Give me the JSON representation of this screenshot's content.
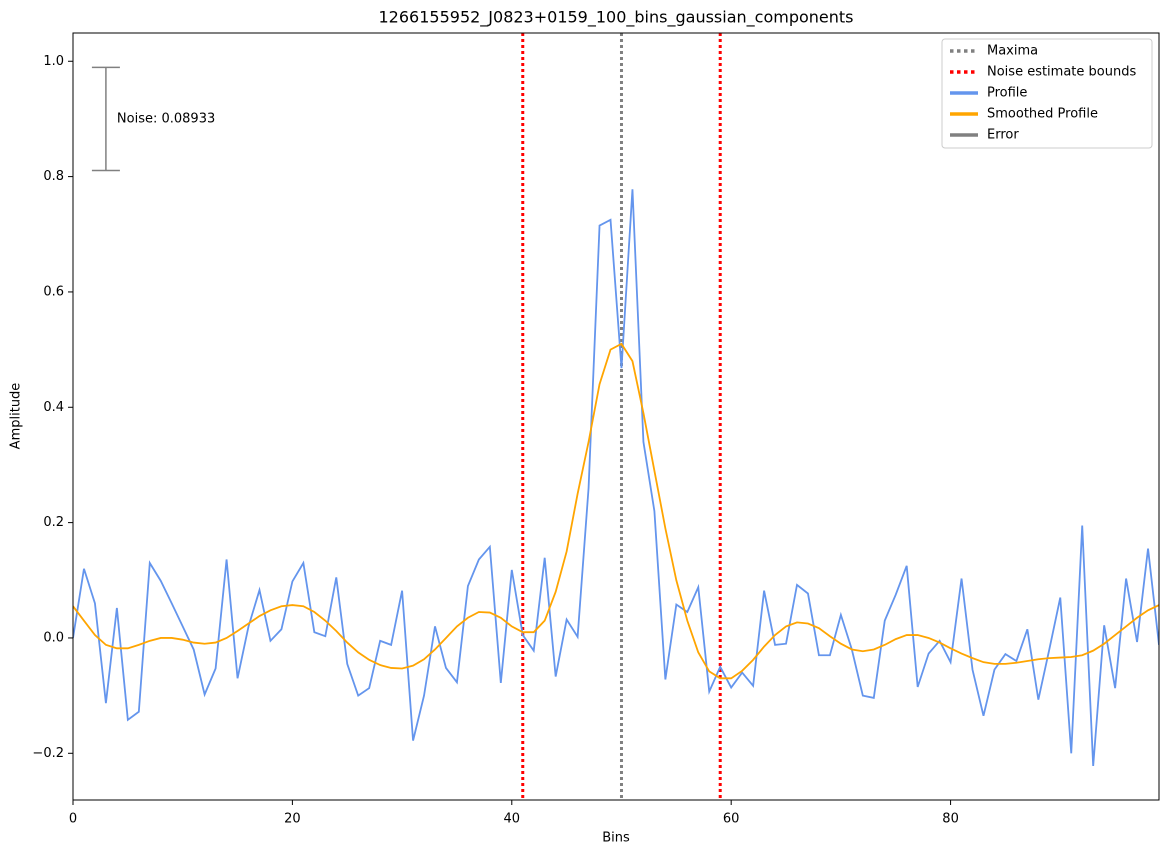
{
  "chart_data": {
    "type": "line",
    "title": "1266155952_J0823+0159_100_bins_gaussian_components",
    "x_label": "Bins",
    "y_label": "Amplitude",
    "xlim": [
      0,
      99
    ],
    "ylim": [
      -0.281,
      1.049
    ],
    "xticks": [
      0,
      20,
      40,
      60,
      80
    ],
    "yticks": [
      {
        "value": -0.2,
        "label": "−0.2"
      },
      {
        "value": 0,
        "label": "0.0"
      },
      {
        "value": 0.2,
        "label": "0.2"
      },
      {
        "value": 0.4,
        "label": "0.4"
      },
      {
        "value": 0.6,
        "label": "0.6"
      },
      {
        "value": 0.8,
        "label": "0.8"
      },
      {
        "value": 1,
        "label": "1.0"
      }
    ],
    "legend": "upper right",
    "x": [
      0,
      1,
      2,
      3,
      4,
      5,
      6,
      7,
      8,
      9,
      10,
      11,
      12,
      13,
      14,
      15,
      16,
      17,
      18,
      19,
      20,
      21,
      22,
      23,
      24,
      25,
      26,
      27,
      28,
      29,
      30,
      31,
      32,
      33,
      34,
      35,
      36,
      37,
      38,
      39,
      40,
      41,
      42,
      43,
      44,
      45,
      46,
      47,
      48,
      49,
      50,
      51,
      52,
      53,
      54,
      55,
      56,
      57,
      58,
      59,
      60,
      61,
      62,
      63,
      64,
      65,
      66,
      67,
      68,
      69,
      70,
      71,
      72,
      73,
      74,
      75,
      76,
      77,
      78,
      79,
      80,
      81,
      82,
      83,
      84,
      85,
      86,
      87,
      88,
      89,
      90,
      91,
      92,
      93,
      94,
      95,
      96,
      97,
      98,
      99
    ],
    "vlines": [
      {
        "name": "Maxima",
        "color": "#808080",
        "x": [
          50
        ]
      },
      {
        "name": "Noise estimate bounds",
        "color": "#ff0000",
        "x": [
          41,
          59
        ]
      }
    ],
    "series": [
      {
        "name": "Profile",
        "color": "#6495ed",
        "values": [
          0.0,
          0.12,
          0.06,
          -0.113,
          0.052,
          -0.142,
          -0.128,
          0.13,
          0.099,
          0.06,
          0.02,
          -0.02,
          -0.098,
          -0.053,
          0.136,
          -0.07,
          0.02,
          0.083,
          -0.005,
          0.015,
          0.098,
          0.13,
          0.01,
          0.003,
          0.105,
          -0.045,
          -0.1,
          -0.087,
          -0.005,
          -0.012,
          0.082,
          -0.178,
          -0.1,
          0.02,
          -0.052,
          -0.077,
          0.09,
          0.136,
          0.158,
          -0.078,
          0.118,
          0.005,
          -0.022,
          0.139,
          -0.067,
          0.032,
          0.002,
          0.26,
          0.715,
          0.725,
          0.468,
          0.778,
          0.34,
          0.22,
          -0.072,
          0.058,
          0.045,
          0.088,
          -0.093,
          -0.05,
          -0.086,
          -0.06,
          -0.083,
          0.082,
          -0.012,
          -0.01,
          0.092,
          0.077,
          -0.03,
          -0.03,
          0.04,
          -0.02,
          -0.1,
          -0.104,
          0.03,
          0.075,
          0.125,
          -0.085,
          -0.027,
          -0.005,
          -0.042,
          0.103,
          -0.055,
          -0.135,
          -0.055,
          -0.028,
          -0.04,
          0.015,
          -0.107,
          -0.02,
          0.07,
          -0.2,
          0.195,
          -0.222,
          0.022,
          -0.087,
          0.103,
          -0.007,
          0.155,
          -0.012
        ]
      },
      {
        "name": "Smoothed Profile",
        "color": "#ffa500",
        "values": [
          0.055,
          0.03,
          0.005,
          -0.012,
          -0.018,
          -0.018,
          -0.012,
          -0.005,
          0.0,
          0.0,
          -0.003,
          -0.008,
          -0.01,
          -0.008,
          0.0,
          0.012,
          0.025,
          0.038,
          0.048,
          0.055,
          0.057,
          0.055,
          0.045,
          0.03,
          0.012,
          -0.008,
          -0.025,
          -0.038,
          -0.047,
          -0.052,
          -0.053,
          -0.048,
          -0.037,
          -0.02,
          0.0,
          0.02,
          0.035,
          0.045,
          0.044,
          0.035,
          0.02,
          0.01,
          0.01,
          0.03,
          0.08,
          0.15,
          0.25,
          0.34,
          0.44,
          0.5,
          0.51,
          0.48,
          0.39,
          0.29,
          0.19,
          0.1,
          0.03,
          -0.025,
          -0.058,
          -0.07,
          -0.07,
          -0.057,
          -0.038,
          -0.015,
          0.005,
          0.02,
          0.027,
          0.025,
          0.017,
          0.003,
          -0.01,
          -0.02,
          -0.023,
          -0.02,
          -0.012,
          -0.002,
          0.005,
          0.005,
          0.0,
          -0.008,
          -0.018,
          -0.027,
          -0.035,
          -0.042,
          -0.045,
          -0.045,
          -0.043,
          -0.04,
          -0.037,
          -0.035,
          -0.034,
          -0.033,
          -0.03,
          -0.022,
          -0.01,
          0.005,
          0.02,
          0.035,
          0.048,
          0.057
        ]
      }
    ],
    "error_bar": {
      "name": "Error",
      "color": "#808080",
      "x": 3,
      "y": 0.9,
      "error": 0.08933
    },
    "annotation": "Noise: 0.08933"
  }
}
